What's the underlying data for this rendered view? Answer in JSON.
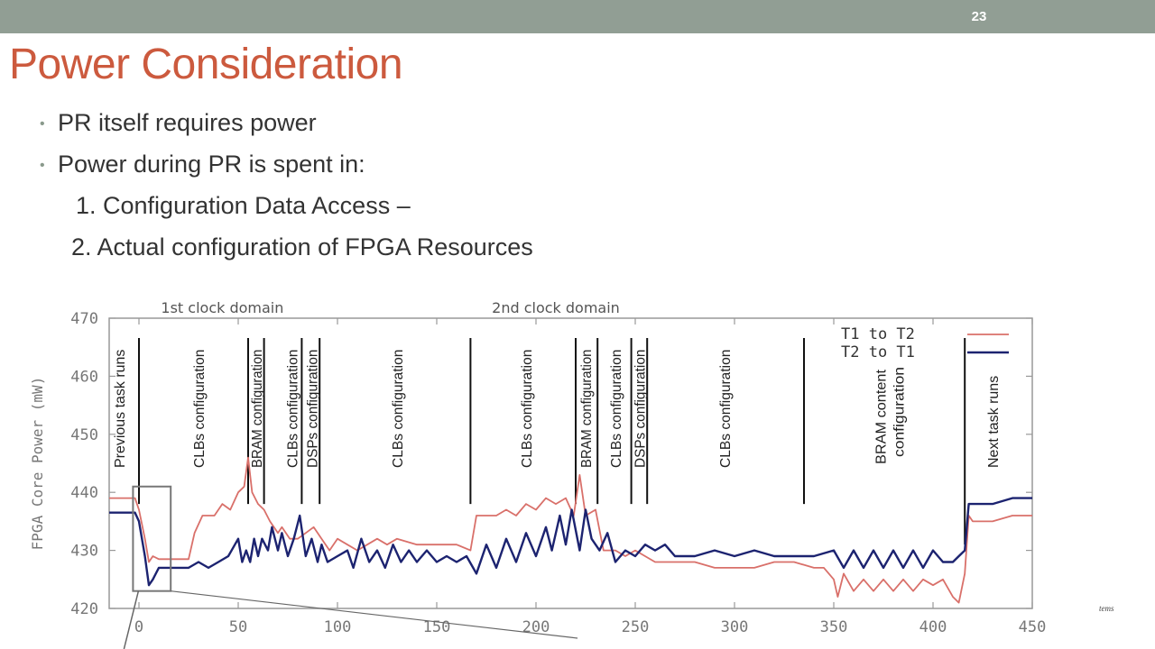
{
  "slide": {
    "number": "23",
    "title": "Power Consideration",
    "bullets": [
      "PR itself requires power",
      "Power during PR is spent in:"
    ],
    "sub_items": [
      "1. Configuration Data Access –",
      "2. Actual configuration of FPGA Resources"
    ],
    "corner_text": "tems"
  },
  "colors": {
    "topbar": "#919e94",
    "title": "#cc5a3e",
    "series1": "#d9706a",
    "series2": "#1c2370"
  },
  "chart_data": {
    "type": "line",
    "title": "",
    "xlabel": "",
    "ylabel": "FPGA Core Power  (mW)",
    "xlim": [
      -15,
      450
    ],
    "ylim": [
      420,
      470
    ],
    "x_ticks": [
      0,
      50,
      100,
      150,
      200,
      250,
      300,
      350,
      400,
      450
    ],
    "y_ticks": [
      420,
      430,
      440,
      450,
      460,
      470
    ],
    "grid": false,
    "legend_position": "top-right",
    "domains": [
      {
        "label": "1st clock domain",
        "x": 42
      },
      {
        "label": "2nd clock domain",
        "x": 210
      }
    ],
    "phase_markers": [
      0,
      55,
      63,
      82,
      91,
      167,
      220,
      231,
      248,
      256,
      335,
      416
    ],
    "phase_labels": [
      {
        "text": "Previous task runs",
        "x": -10
      },
      {
        "text": "CLBs configuration",
        "x": 30
      },
      {
        "text": "BRAM configuration",
        "x": 59
      },
      {
        "text": "CLBs configuration",
        "x": 77
      },
      {
        "text": "DSPs configuration",
        "x": 87
      },
      {
        "text": "CLBs configuration",
        "x": 130
      },
      {
        "text": "CLBs configuration",
        "x": 195
      },
      {
        "text": "BRAM configuration",
        "x": 225
      },
      {
        "text": "CLBs configuration",
        "x": 240
      },
      {
        "text": "DSPs configuration",
        "x": 252
      },
      {
        "text": "CLBs configuration",
        "x": 295
      },
      {
        "text": "BRAM content configuration",
        "x": 378
      },
      {
        "text": "Next task runs",
        "x": 430
      }
    ],
    "series": [
      {
        "legend_label": "T1 to T2",
        "points": [
          [
            -15,
            439
          ],
          [
            -2,
            439
          ],
          [
            0,
            437
          ],
          [
            3,
            432
          ],
          [
            5,
            428
          ],
          [
            7,
            429
          ],
          [
            10,
            428.5
          ],
          [
            20,
            428.5
          ],
          [
            25,
            428.5
          ],
          [
            28,
            433
          ],
          [
            32,
            436
          ],
          [
            38,
            436
          ],
          [
            42,
            438
          ],
          [
            46,
            437
          ],
          [
            50,
            440
          ],
          [
            53,
            441
          ],
          [
            55,
            446
          ],
          [
            57,
            440
          ],
          [
            60,
            438
          ],
          [
            63,
            437
          ],
          [
            66,
            435
          ],
          [
            70,
            433
          ],
          [
            72,
            434
          ],
          [
            76,
            432
          ],
          [
            80,
            432
          ],
          [
            84,
            433
          ],
          [
            88,
            434
          ],
          [
            92,
            432
          ],
          [
            96,
            430
          ],
          [
            100,
            432
          ],
          [
            105,
            431
          ],
          [
            110,
            430
          ],
          [
            115,
            431
          ],
          [
            120,
            432
          ],
          [
            125,
            431
          ],
          [
            130,
            432
          ],
          [
            140,
            431
          ],
          [
            150,
            431
          ],
          [
            160,
            431
          ],
          [
            167,
            430
          ],
          [
            170,
            436
          ],
          [
            175,
            436
          ],
          [
            180,
            436
          ],
          [
            185,
            437
          ],
          [
            190,
            436
          ],
          [
            195,
            438
          ],
          [
            200,
            437
          ],
          [
            205,
            439
          ],
          [
            210,
            438
          ],
          [
            215,
            439
          ],
          [
            219,
            436
          ],
          [
            222,
            443
          ],
          [
            225,
            436
          ],
          [
            230,
            437
          ],
          [
            234,
            430
          ],
          [
            240,
            430
          ],
          [
            245,
            429
          ],
          [
            250,
            430
          ],
          [
            260,
            428
          ],
          [
            270,
            428
          ],
          [
            280,
            428
          ],
          [
            290,
            427
          ],
          [
            300,
            427
          ],
          [
            310,
            427
          ],
          [
            320,
            428
          ],
          [
            330,
            428
          ],
          [
            340,
            427
          ],
          [
            345,
            427
          ],
          [
            350,
            425
          ],
          [
            352,
            422
          ],
          [
            355,
            426
          ],
          [
            360,
            423
          ],
          [
            365,
            425
          ],
          [
            370,
            423
          ],
          [
            375,
            425
          ],
          [
            380,
            423
          ],
          [
            385,
            425
          ],
          [
            390,
            423
          ],
          [
            395,
            425
          ],
          [
            400,
            424
          ],
          [
            405,
            425
          ],
          [
            410,
            422
          ],
          [
            413,
            421
          ],
          [
            416,
            426
          ],
          [
            418,
            436
          ],
          [
            420,
            435
          ],
          [
            430,
            435
          ],
          [
            440,
            436
          ],
          [
            450,
            436
          ]
        ]
      },
      {
        "legend_label": "T2 to T1",
        "points": [
          [
            -15,
            436.5
          ],
          [
            -2,
            436.5
          ],
          [
            0,
            435
          ],
          [
            3,
            429
          ],
          [
            5,
            424
          ],
          [
            7,
            425
          ],
          [
            10,
            427
          ],
          [
            20,
            427
          ],
          [
            25,
            427
          ],
          [
            30,
            428
          ],
          [
            35,
            427
          ],
          [
            40,
            428
          ],
          [
            45,
            429
          ],
          [
            50,
            432
          ],
          [
            52,
            428
          ],
          [
            54,
            430
          ],
          [
            56,
            428
          ],
          [
            58,
            432
          ],
          [
            60,
            429
          ],
          [
            62,
            432
          ],
          [
            65,
            430
          ],
          [
            67,
            434
          ],
          [
            70,
            430
          ],
          [
            72,
            433
          ],
          [
            75,
            429
          ],
          [
            78,
            432
          ],
          [
            81,
            436
          ],
          [
            84,
            429
          ],
          [
            87,
            432
          ],
          [
            90,
            428
          ],
          [
            92,
            431
          ],
          [
            95,
            428
          ],
          [
            100,
            429
          ],
          [
            105,
            430
          ],
          [
            108,
            427
          ],
          [
            112,
            432
          ],
          [
            116,
            428
          ],
          [
            120,
            430
          ],
          [
            124,
            427
          ],
          [
            128,
            431
          ],
          [
            132,
            428
          ],
          [
            136,
            430
          ],
          [
            140,
            428
          ],
          [
            145,
            430
          ],
          [
            150,
            428
          ],
          [
            155,
            429
          ],
          [
            160,
            428
          ],
          [
            165,
            429
          ],
          [
            170,
            426
          ],
          [
            175,
            431
          ],
          [
            180,
            427
          ],
          [
            185,
            432
          ],
          [
            190,
            428
          ],
          [
            195,
            433
          ],
          [
            200,
            429
          ],
          [
            205,
            434
          ],
          [
            208,
            430
          ],
          [
            212,
            436
          ],
          [
            215,
            431
          ],
          [
            218,
            437
          ],
          [
            222,
            430
          ],
          [
            225,
            437
          ],
          [
            228,
            432
          ],
          [
            232,
            430
          ],
          [
            236,
            433
          ],
          [
            240,
            428
          ],
          [
            245,
            430
          ],
          [
            250,
            429
          ],
          [
            255,
            431
          ],
          [
            260,
            430
          ],
          [
            265,
            431
          ],
          [
            270,
            429
          ],
          [
            280,
            429
          ],
          [
            290,
            430
          ],
          [
            300,
            429
          ],
          [
            310,
            430
          ],
          [
            320,
            429
          ],
          [
            330,
            429
          ],
          [
            340,
            429
          ],
          [
            350,
            430
          ],
          [
            355,
            427
          ],
          [
            360,
            430
          ],
          [
            365,
            427
          ],
          [
            370,
            430
          ],
          [
            375,
            427
          ],
          [
            380,
            430
          ],
          [
            385,
            427
          ],
          [
            390,
            430
          ],
          [
            395,
            427
          ],
          [
            400,
            430
          ],
          [
            405,
            428
          ],
          [
            410,
            428
          ],
          [
            413,
            429
          ],
          [
            416,
            430
          ],
          [
            418,
            438
          ],
          [
            422,
            438
          ],
          [
            430,
            438
          ],
          [
            440,
            439
          ],
          [
            450,
            439
          ]
        ]
      }
    ],
    "inset_box": {
      "x0": -3,
      "x1": 16,
      "y0": 423,
      "y1": 441
    }
  }
}
